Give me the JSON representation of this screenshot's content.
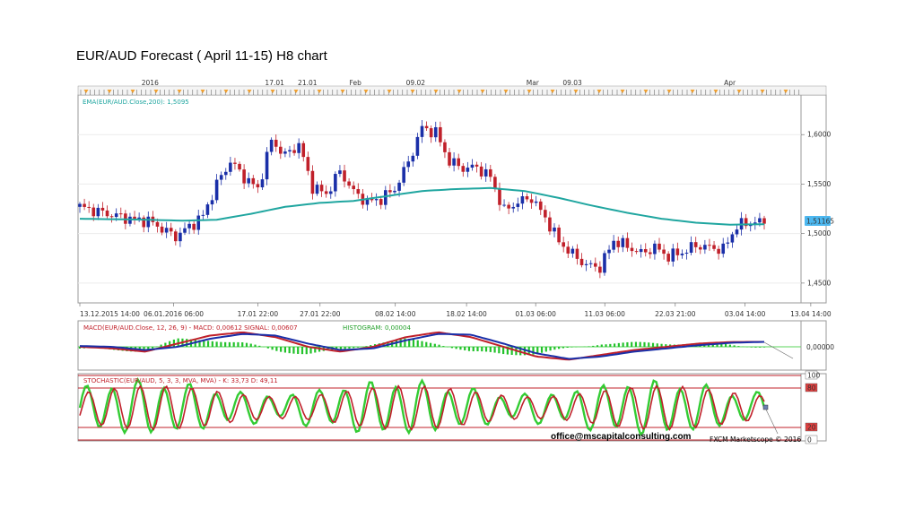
{
  "title": "EUR/AUD Forecast ( April 11-15) H8 chart",
  "main_chart": {
    "indicator_label": "EMA(EUR/AUD.Close,200): 1,5095",
    "current_price": "1,51165",
    "months_top": [
      {
        "label": "2016",
        "at": 0.1
      },
      {
        "label": "17.01",
        "at": 0.282
      },
      {
        "label": "21.01",
        "at": 0.33
      },
      {
        "label": "Feb",
        "at": 0.4
      },
      {
        "label": "09.02",
        "at": 0.488
      },
      {
        "label": "Mar",
        "at": 0.659
      },
      {
        "label": "09.03",
        "at": 0.717
      },
      {
        "label": "Apr",
        "at": 0.947
      }
    ],
    "date_ticks": [
      {
        "label": "13.12.2015 14:00",
        "at": 0.0
      },
      {
        "label": "06.01.2016 06:00",
        "at": 0.137
      },
      {
        "label": "17.01 22:00",
        "at": 0.26
      },
      {
        "label": "27.01 22:00",
        "at": 0.351
      },
      {
        "label": "08.02 14:00",
        "at": 0.461
      },
      {
        "label": "18.02 14:00",
        "at": 0.565
      },
      {
        "label": "01.03 06:00",
        "at": 0.666
      },
      {
        "label": "11.03 06:00",
        "at": 0.767
      },
      {
        "label": "22.03 21:00",
        "at": 0.87
      },
      {
        "label": "03.04 14:00",
        "at": 0.972
      },
      {
        "label": "13.04 14:00",
        "at": 1.068
      }
    ]
  },
  "macd_panel": {
    "label_main": "MACD(EUR/AUD.Close, 12, 26, 9) - MACD: 0,00612  SIGNAL: 0,00607",
    "label_hist": "HISTOGRAM: 0,00004",
    "zero_label": "0,00000"
  },
  "stoch_panel": {
    "label": "STOCHASTIC(EUR/AUD, 5, 3, 3, MVA, MVA) - K: 33,73  D: 49,11",
    "levels": [
      "100",
      "80",
      "20",
      "0"
    ]
  },
  "footer": {
    "email": "office@mscapitalconsulting.com",
    "copyright": "FXCM Marketscope © 2016"
  },
  "colors": {
    "ema": "#20a6a0",
    "bull": "#1a2fa8",
    "bear": "#c0202a",
    "macd": "#c0202a",
    "signal": "#1a2fa8",
    "hist": "#22c22a",
    "stoch_k": "#33cc33",
    "stoch_d": "#c0202a",
    "level_line": "#c0202a",
    "price_box": "#4db8f0"
  },
  "chart_data": {
    "type": "line",
    "title": "EUR/AUD Forecast ( April 11-15) H8 chart",
    "y_axis": {
      "ticks": [
        1.45,
        1.5,
        1.55,
        1.6
      ],
      "labels": [
        "1,4500",
        "1,5000",
        "1,5500",
        "1,6000"
      ],
      "ylim": [
        1.43,
        1.64
      ]
    },
    "series": [
      {
        "name": "EMA(EUR/AUD.Close,200): 1,5095",
        "x": [
          0,
          0.1,
          0.15,
          0.2,
          0.25,
          0.3,
          0.35,
          0.4,
          0.45,
          0.5,
          0.55,
          0.6,
          0.65,
          0.7,
          0.75,
          0.8,
          0.85,
          0.9,
          0.95,
          1.0
        ],
        "values": [
          1.515,
          1.514,
          1.513,
          1.514,
          1.52,
          1.527,
          1.531,
          1.533,
          1.538,
          1.543,
          1.545,
          1.546,
          1.543,
          1.536,
          1.528,
          1.521,
          1.515,
          1.511,
          1.509,
          1.5095
        ]
      },
      {
        "name": "Price",
        "x": [
          0,
          0.04,
          0.08,
          0.1,
          0.12,
          0.14,
          0.16,
          0.18,
          0.2,
          0.22,
          0.24,
          0.26,
          0.28,
          0.3,
          0.32,
          0.34,
          0.36,
          0.38,
          0.4,
          0.42,
          0.44,
          0.46,
          0.48,
          0.5,
          0.52,
          0.54,
          0.56,
          0.58,
          0.6,
          0.62,
          0.64,
          0.66,
          0.68,
          0.7,
          0.72,
          0.74,
          0.76,
          0.78,
          0.8,
          0.82,
          0.84,
          0.86,
          0.88,
          0.9,
          0.92,
          0.94,
          0.96,
          0.98,
          1.0
        ],
        "values": [
          1.527,
          1.52,
          1.514,
          1.513,
          1.505,
          1.497,
          1.507,
          1.518,
          1.55,
          1.573,
          1.557,
          1.545,
          1.594,
          1.579,
          1.59,
          1.547,
          1.54,
          1.563,
          1.542,
          1.532,
          1.535,
          1.545,
          1.572,
          1.607,
          1.602,
          1.573,
          1.566,
          1.567,
          1.557,
          1.523,
          1.532,
          1.536,
          1.516,
          1.492,
          1.479,
          1.468,
          1.466,
          1.493,
          1.487,
          1.48,
          1.486,
          1.477,
          1.481,
          1.488,
          1.486,
          1.484,
          1.508,
          1.511,
          1.5117
        ]
      }
    ],
    "macd": {
      "zero": 0.0,
      "macd_values": [
        0.0,
        -0.002,
        -0.006,
        0.004,
        0.014,
        0.018,
        0.012,
        0.0,
        -0.006,
        0.0,
        0.012,
        0.018,
        0.012,
        0.0,
        -0.012,
        -0.016,
        -0.01,
        -0.004,
        0.0,
        0.004,
        0.006,
        0.00612
      ],
      "signal_values": [
        0.001,
        0.0,
        -0.004,
        0.0,
        0.01,
        0.016,
        0.014,
        0.004,
        -0.004,
        -0.002,
        0.008,
        0.016,
        0.015,
        0.004,
        -0.008,
        -0.015,
        -0.012,
        -0.006,
        -0.002,
        0.002,
        0.005,
        0.00607
      ]
    },
    "stochastic": {
      "k_final": 33.73,
      "d_final": 49.11,
      "levels": [
        100,
        80,
        20,
        0
      ]
    },
    "grid": true,
    "legend": "top-left"
  }
}
